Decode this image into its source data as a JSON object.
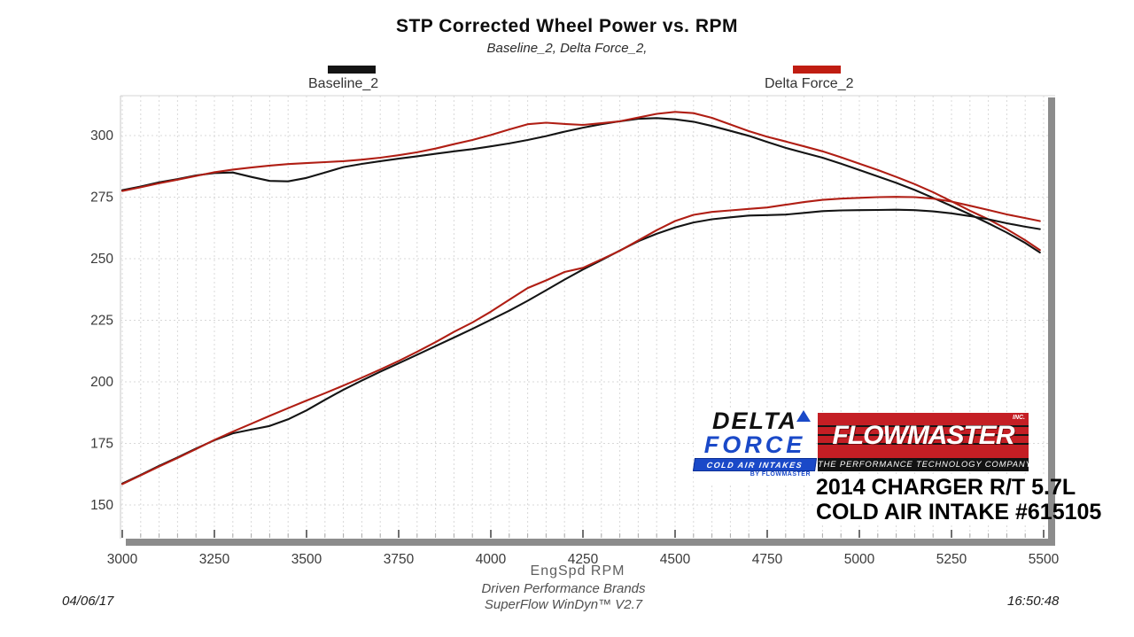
{
  "header": {
    "title": "STP Corrected Wheel Power vs. RPM",
    "subtitle": "Baseline_2, Delta Force_2,"
  },
  "legend": {
    "baseline": {
      "label": "Baseline_2",
      "color": "#141414"
    },
    "delta": {
      "label": "Delta Force_2",
      "color": "#c01d12"
    }
  },
  "footer": {
    "xaxis_title": "EngSpd  RPM",
    "brand_line": "Driven Performance Brands",
    "software_line": "SuperFlow WinDyn™ V2.7",
    "date": "04/06/17",
    "time": "16:50:48"
  },
  "overlay": {
    "delta_logo": {
      "word1": "DELTA",
      "word2": "FORCE",
      "banner": "COLD AIR INTAKES",
      "byline": "BY FLOWMASTER",
      "blue": "#1a49c8"
    },
    "flowmaster_logo": {
      "word": "FLOWMASTER",
      "inc": "INC.",
      "tagline": "THE PERFORMANCE TECHNOLOGY COMPANY",
      "red": "#c41e24"
    },
    "vehicle_line1": "2014 CHARGER R/T 5.7L",
    "vehicle_line2": "COLD AIR INTAKE #615105"
  },
  "chart_data": {
    "type": "line",
    "title": "STP Corrected Wheel Power vs. RPM",
    "xlabel": "EngSpd RPM",
    "ylabel": "",
    "x_range": [
      3000,
      5512
    ],
    "y_range": [
      136,
      316
    ],
    "x_ticks": [
      3000,
      3250,
      3500,
      3750,
      4000,
      4250,
      4500,
      4750,
      5000,
      5250,
      5500
    ],
    "x_minor_step": 50,
    "y_ticks": [
      150,
      175,
      200,
      225,
      250,
      275,
      300
    ],
    "grid": "dashed",
    "legend_position": "top",
    "axis_color": "#8c8c8c",
    "grid_color": "#d8d8d8",
    "series": [
      {
        "name": "Baseline_2 torque",
        "color": "#141414",
        "points": [
          [
            3000,
            277.8
          ],
          [
            3050,
            279.3
          ],
          [
            3100,
            281
          ],
          [
            3150,
            282.3
          ],
          [
            3200,
            283.8
          ],
          [
            3250,
            284.8
          ],
          [
            3300,
            285
          ],
          [
            3350,
            283.2
          ],
          [
            3400,
            281.6
          ],
          [
            3450,
            281.4
          ],
          [
            3500,
            282.8
          ],
          [
            3550,
            285
          ],
          [
            3600,
            287.2
          ],
          [
            3650,
            288.5
          ],
          [
            3700,
            289.6
          ],
          [
            3750,
            290.6
          ],
          [
            3800,
            291.6
          ],
          [
            3850,
            292.6
          ],
          [
            3900,
            293.6
          ],
          [
            3950,
            294.5
          ],
          [
            4000,
            295.6
          ],
          [
            4050,
            296.8
          ],
          [
            4100,
            298.2
          ],
          [
            4150,
            299.8
          ],
          [
            4200,
            301.6
          ],
          [
            4250,
            303.2
          ],
          [
            4300,
            304.6
          ],
          [
            4350,
            305.8
          ],
          [
            4400,
            306.8
          ],
          [
            4450,
            307.1
          ],
          [
            4500,
            306.6
          ],
          [
            4550,
            305.6
          ],
          [
            4600,
            303.9
          ],
          [
            4650,
            301.9
          ],
          [
            4700,
            299.9
          ],
          [
            4750,
            297.4
          ],
          [
            4800,
            295
          ],
          [
            4850,
            293
          ],
          [
            4900,
            291
          ],
          [
            4950,
            288.6
          ],
          [
            5000,
            286
          ],
          [
            5050,
            283.4
          ],
          [
            5100,
            280.8
          ],
          [
            5150,
            277.9
          ],
          [
            5200,
            274.7
          ],
          [
            5250,
            271.4
          ],
          [
            5300,
            268
          ],
          [
            5350,
            264.4
          ],
          [
            5400,
            260.6
          ],
          [
            5450,
            256.4
          ],
          [
            5490,
            252.5
          ]
        ]
      },
      {
        "name": "Delta Force_2 torque",
        "color": "#b01e14",
        "points": [
          [
            3000,
            277.5
          ],
          [
            3050,
            279
          ],
          [
            3100,
            280.6
          ],
          [
            3150,
            282.1
          ],
          [
            3200,
            283.6
          ],
          [
            3250,
            285.1
          ],
          [
            3300,
            286.2
          ],
          [
            3350,
            287
          ],
          [
            3400,
            287.8
          ],
          [
            3450,
            288.4
          ],
          [
            3500,
            288.8
          ],
          [
            3550,
            289.2
          ],
          [
            3600,
            289.6
          ],
          [
            3650,
            290.2
          ],
          [
            3700,
            291
          ],
          [
            3750,
            292
          ],
          [
            3800,
            293.2
          ],
          [
            3850,
            294.7
          ],
          [
            3900,
            296.5
          ],
          [
            3950,
            298.2
          ],
          [
            4000,
            300.2
          ],
          [
            4050,
            302.5
          ],
          [
            4100,
            304.6
          ],
          [
            4150,
            305.2
          ],
          [
            4200,
            304.7
          ],
          [
            4250,
            304.3
          ],
          [
            4300,
            305
          ],
          [
            4350,
            305.8
          ],
          [
            4400,
            307.3
          ],
          [
            4450,
            308.8
          ],
          [
            4500,
            309.6
          ],
          [
            4550,
            309.1
          ],
          [
            4600,
            307.2
          ],
          [
            4650,
            304.5
          ],
          [
            4700,
            301.8
          ],
          [
            4750,
            299.5
          ],
          [
            4800,
            297.6
          ],
          [
            4850,
            295.6
          ],
          [
            4900,
            293.6
          ],
          [
            4950,
            291.2
          ],
          [
            5000,
            288.6
          ],
          [
            5050,
            286
          ],
          [
            5100,
            283.2
          ],
          [
            5150,
            280.3
          ],
          [
            5200,
            277
          ],
          [
            5250,
            273.3
          ],
          [
            5300,
            269.5
          ],
          [
            5350,
            266
          ],
          [
            5400,
            262
          ],
          [
            5450,
            257.5
          ],
          [
            5490,
            253.5
          ]
        ]
      },
      {
        "name": "Baseline_2 power",
        "color": "#141414",
        "points": [
          [
            3000,
            158.7
          ],
          [
            3050,
            162.2
          ],
          [
            3100,
            165.9
          ],
          [
            3150,
            169.3
          ],
          [
            3200,
            172.9
          ],
          [
            3250,
            176.3
          ],
          [
            3300,
            179.1
          ],
          [
            3350,
            180.6
          ],
          [
            3400,
            182.1
          ],
          [
            3450,
            184.8
          ],
          [
            3500,
            188.4
          ],
          [
            3550,
            192.7
          ],
          [
            3600,
            196.8
          ],
          [
            3650,
            200.5
          ],
          [
            3700,
            204.1
          ],
          [
            3750,
            207.5
          ],
          [
            3800,
            211
          ],
          [
            3850,
            214.5
          ],
          [
            3900,
            218
          ],
          [
            3950,
            221.5
          ],
          [
            4000,
            225.2
          ],
          [
            4050,
            228.9
          ],
          [
            4100,
            232.9
          ],
          [
            4150,
            237.2
          ],
          [
            4200,
            241.5
          ],
          [
            4250,
            245.6
          ],
          [
            4300,
            249.4
          ],
          [
            4350,
            253.3
          ],
          [
            4400,
            257.1
          ],
          [
            4450,
            260.1
          ],
          [
            4500,
            262.7
          ],
          [
            4550,
            264.7
          ],
          [
            4600,
            266
          ],
          [
            4650,
            266.8
          ],
          [
            4700,
            267.5
          ],
          [
            4750,
            267.7
          ],
          [
            4800,
            267.9
          ],
          [
            4850,
            268.6
          ],
          [
            4900,
            269.3
          ],
          [
            4950,
            269.6
          ],
          [
            5000,
            269.7
          ],
          [
            5050,
            269.8
          ],
          [
            5100,
            269.9
          ],
          [
            5150,
            269.7
          ],
          [
            5200,
            269.2
          ],
          [
            5250,
            268.4
          ],
          [
            5300,
            267.3
          ],
          [
            5350,
            266
          ],
          [
            5400,
            264.4
          ],
          [
            5450,
            263
          ],
          [
            5490,
            262
          ]
        ]
      },
      {
        "name": "Delta Force_2 power",
        "color": "#b01e14",
        "points": [
          [
            3000,
            158.5
          ],
          [
            3050,
            162
          ],
          [
            3100,
            165.6
          ],
          [
            3150,
            169.1
          ],
          [
            3200,
            172.7
          ],
          [
            3250,
            176.4
          ],
          [
            3300,
            179.8
          ],
          [
            3350,
            183
          ],
          [
            3400,
            186.2
          ],
          [
            3450,
            189.3
          ],
          [
            3500,
            192.4
          ],
          [
            3550,
            195.4
          ],
          [
            3600,
            198.5
          ],
          [
            3650,
            201.7
          ],
          [
            3700,
            205
          ],
          [
            3750,
            208.5
          ],
          [
            3800,
            212.2
          ],
          [
            3850,
            216.1
          ],
          [
            3900,
            220.3
          ],
          [
            3950,
            224.1
          ],
          [
            4000,
            228.5
          ],
          [
            4050,
            233.3
          ],
          [
            4100,
            238.1
          ],
          [
            4150,
            241.2
          ],
          [
            4200,
            244.6
          ],
          [
            4250,
            246.3
          ],
          [
            4300,
            249.7
          ],
          [
            4350,
            253.2
          ],
          [
            4400,
            257.4
          ],
          [
            4450,
            261.6
          ],
          [
            4500,
            265.3
          ],
          [
            4550,
            267.8
          ],
          [
            4600,
            269
          ],
          [
            4650,
            269.6
          ],
          [
            4700,
            270.2
          ],
          [
            4750,
            270.8
          ],
          [
            4800,
            271.9
          ],
          [
            4850,
            273
          ],
          [
            4900,
            273.9
          ],
          [
            4950,
            274.4
          ],
          [
            5000,
            274.7
          ],
          [
            5050,
            275
          ],
          [
            5100,
            275.1
          ],
          [
            5150,
            275
          ],
          [
            5200,
            274.4
          ],
          [
            5250,
            273.2
          ],
          [
            5300,
            271.5
          ],
          [
            5350,
            269.8
          ],
          [
            5400,
            268
          ],
          [
            5450,
            266.5
          ],
          [
            5490,
            265.3
          ]
        ]
      }
    ]
  }
}
